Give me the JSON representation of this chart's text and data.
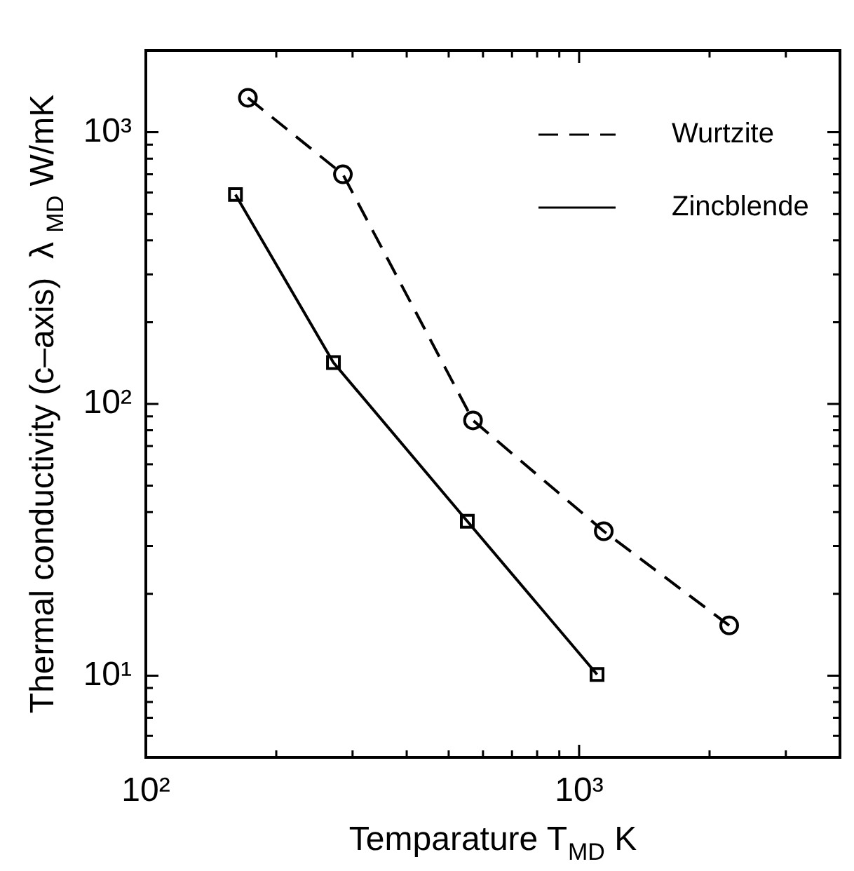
{
  "chart_data": {
    "type": "line",
    "xlabel": "Temparature T$_{MD}$ K",
    "ylabel": "Thermal conductivity (c–axis)  λ $_{MD}$ W/mK",
    "log": "xy",
    "grid": false,
    "legend": "top right",
    "xlim": [
      100,
      4000
    ],
    "ylim": [
      5,
      2000
    ],
    "xticks": [
      {
        "value": 100,
        "label": "10²"
      },
      {
        "value": 200,
        "label": null
      },
      {
        "value": 300,
        "label": null
      },
      {
        "value": 400,
        "label": null
      },
      {
        "value": 500,
        "label": null
      },
      {
        "value": 600,
        "label": null
      },
      {
        "value": 700,
        "label": null
      },
      {
        "value": 800,
        "label": null
      },
      {
        "value": 900,
        "label": null
      },
      {
        "value": 1000,
        "label": "10³"
      },
      {
        "value": 2000,
        "label": null
      },
      {
        "value": 3000,
        "label": null
      }
    ],
    "yticks": [
      {
        "value": 6,
        "label": null
      },
      {
        "value": 7,
        "label": null
      },
      {
        "value": 8,
        "label": null
      },
      {
        "value": 9,
        "label": null
      },
      {
        "value": 10,
        "label": "10¹"
      },
      {
        "value": 20,
        "label": null
      },
      {
        "value": 30,
        "label": null
      },
      {
        "value": 40,
        "label": null
      },
      {
        "value": 50,
        "label": null
      },
      {
        "value": 60,
        "label": null
      },
      {
        "value": 70,
        "label": null
      },
      {
        "value": 80,
        "label": null
      },
      {
        "value": 90,
        "label": null
      },
      {
        "value": 100,
        "label": "10²"
      },
      {
        "value": 200,
        "label": null
      },
      {
        "value": 300,
        "label": null
      },
      {
        "value": 400,
        "label": null
      },
      {
        "value": 500,
        "label": null
      },
      {
        "value": 600,
        "label": null
      },
      {
        "value": 700,
        "label": null
      },
      {
        "value": 800,
        "label": null
      },
      {
        "value": 900,
        "label": null
      },
      {
        "value": 1000,
        "label": "10³"
      }
    ],
    "series": [
      {
        "name": "Wurtzite",
        "color": "#000000",
        "marker": "circle",
        "line_style": "dashed",
        "x": [
          172,
          285,
          569,
          1140,
          2220
        ],
        "values": [
          1340,
          700,
          87,
          34,
          15.3
        ]
      },
      {
        "name": "Zincblende",
        "color": "#000000",
        "marker": "square",
        "line_style": "solid",
        "x": [
          161,
          271,
          552,
          1100
        ],
        "values": [
          590,
          142,
          37,
          10.1
        ]
      }
    ]
  }
}
